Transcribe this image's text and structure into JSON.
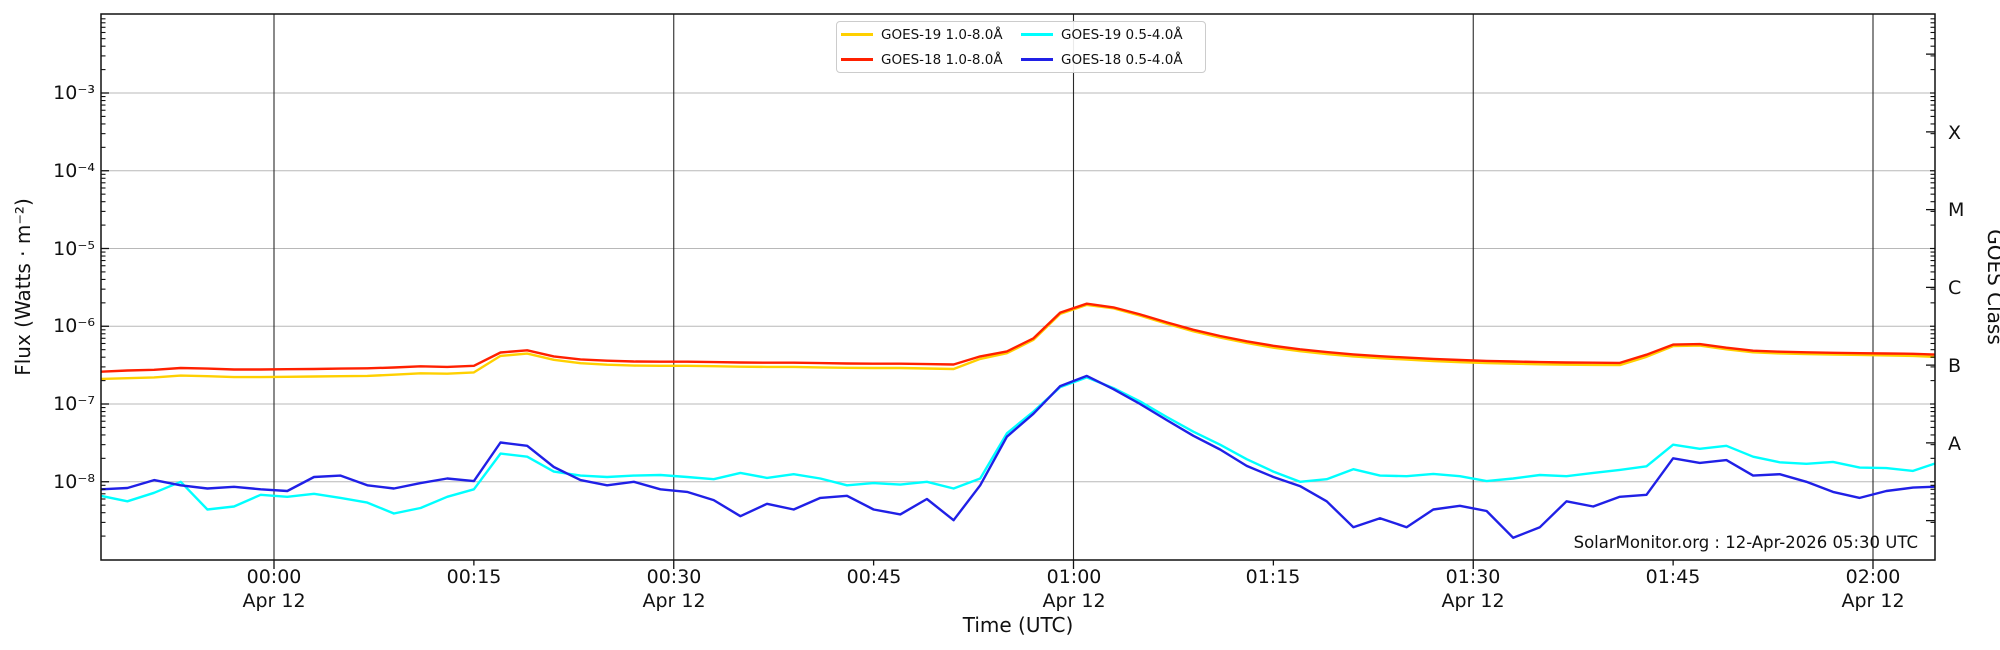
{
  "figure": {
    "watermark": "SolarMonitor.org : 12-Apr-2026 05:30 UTC",
    "background": "#ffffff"
  },
  "axes": {
    "left": {
      "label": "Flux (Watts · m⁻²)",
      "tick_labels": [
        "10⁻³",
        "10⁻⁴",
        "10⁻⁵",
        "10⁻⁶",
        "10⁻⁷",
        "10⁻⁸"
      ],
      "tick_exponents": [
        -3,
        -4,
        -5,
        -6,
        -7,
        -8
      ]
    },
    "right": {
      "label": "GOES Class",
      "classes": [
        "X",
        "M",
        "C",
        "B",
        "A"
      ],
      "class_exponent_centers": [
        -3.5,
        -4.5,
        -5.5,
        -6.5,
        -7.5
      ]
    },
    "bottom": {
      "label": "Time (UTC)",
      "tick_labels": [
        "00:00",
        "00:15",
        "00:30",
        "00:45",
        "01:00",
        "01:15",
        "01:30",
        "01:45",
        "02:00"
      ],
      "tick_minutes": [
        0,
        15,
        30,
        45,
        60,
        75,
        90,
        105,
        120
      ],
      "date_label": "Apr 12",
      "date_tick_minutes": [
        0,
        30,
        60,
        90,
        120
      ]
    }
  },
  "legend": {
    "entries": [
      {
        "label": "GOES-19 1.0-8.0Å",
        "color": "#ffd000"
      },
      {
        "label": "GOES-18 1.0-8.0Å",
        "color": "#ff2000"
      },
      {
        "label": "GOES-19 0.5-4.0Å",
        "color": "#00ffff"
      },
      {
        "label": "GOES-18 0.5-4.0Å",
        "color": "#2020e6"
      }
    ]
  },
  "chart_data": {
    "type": "line",
    "title": "",
    "xlabel": "Time (UTC)",
    "ylabel": "Flux (Watts · m⁻²)",
    "x_units": "minutes from 2026-04-12 00:00 UTC",
    "ylim": [
      1e-09,
      0.01
    ],
    "x_range_minutes": [
      -13,
      125
    ],
    "y_gridline_exponents": [
      -3,
      -4,
      -5,
      -6,
      -7,
      -8
    ],
    "x_gridline_minutes": [
      0,
      30,
      60,
      90,
      120
    ],
    "grid": true,
    "legend_position": "top-center",
    "x_minutes": [
      -13,
      -11,
      -9,
      -7,
      -5,
      -3,
      -1,
      1,
      3,
      5,
      7,
      9,
      11,
      13,
      15,
      17,
      19,
      21,
      23,
      25,
      27,
      29,
      31,
      33,
      35,
      37,
      39,
      41,
      43,
      45,
      47,
      49,
      51,
      53,
      55,
      57,
      59,
      61,
      63,
      65,
      67,
      69,
      71,
      73,
      75,
      77,
      79,
      81,
      83,
      85,
      87,
      89,
      91,
      93,
      95,
      97,
      99,
      101,
      103,
      105,
      107,
      109,
      111,
      113,
      115,
      117,
      119,
      121,
      123,
      125
    ],
    "series": [
      {
        "name": "GOES-19 1.0-8.0Å",
        "slug": "goes19-long",
        "color": "#ffd000",
        "values": [
          2.1e-07,
          2.15e-07,
          2.2e-07,
          2.32e-07,
          2.28e-07,
          2.22e-07,
          2.22e-07,
          2.24e-07,
          2.26e-07,
          2.28e-07,
          2.3e-07,
          2.38e-07,
          2.48e-07,
          2.45e-07,
          2.55e-07,
          4.15e-07,
          4.45e-07,
          3.7e-07,
          3.35e-07,
          3.2e-07,
          3.12e-07,
          3.1e-07,
          3.1e-07,
          3.06e-07,
          3.02e-07,
          3e-07,
          3e-07,
          2.96e-07,
          2.92e-07,
          2.9e-07,
          2.9e-07,
          2.86e-07,
          2.82e-07,
          3.8e-07,
          4.5e-07,
          6.7e-07,
          1.44e-06,
          1.88e-06,
          1.7e-06,
          1.37e-06,
          1.08e-06,
          8.6e-07,
          7.15e-07,
          6.1e-07,
          5.3e-07,
          4.78e-07,
          4.4e-07,
          4.1e-07,
          3.88e-07,
          3.72e-07,
          3.57e-07,
          3.45e-07,
          3.36e-07,
          3.3e-07,
          3.24e-07,
          3.2e-07,
          3.18e-07,
          3.16e-07,
          4.05e-07,
          5.55e-07,
          5.65e-07,
          5.05e-07,
          4.62e-07,
          4.48e-07,
          4.4e-07,
          4.33e-07,
          4.28e-07,
          4.22e-07,
          4.15e-07,
          4e-07
        ]
      },
      {
        "name": "GOES-18 1.0-8.0Å",
        "slug": "goes18-long",
        "color": "#ff2000",
        "values": [
          2.6e-07,
          2.7e-07,
          2.75e-07,
          2.9e-07,
          2.85e-07,
          2.78e-07,
          2.78e-07,
          2.8e-07,
          2.82e-07,
          2.85e-07,
          2.88e-07,
          2.95e-07,
          3.05e-07,
          3e-07,
          3.1e-07,
          4.6e-07,
          4.9e-07,
          4.1e-07,
          3.75e-07,
          3.6e-07,
          3.52e-07,
          3.5e-07,
          3.5e-07,
          3.46e-07,
          3.42e-07,
          3.4e-07,
          3.4e-07,
          3.36e-07,
          3.32e-07,
          3.3e-07,
          3.3e-07,
          3.26e-07,
          3.22e-07,
          4.1e-07,
          4.75e-07,
          7e-07,
          1.5e-06,
          1.95e-06,
          1.75e-06,
          1.42e-06,
          1.12e-06,
          9e-07,
          7.5e-07,
          6.4e-07,
          5.6e-07,
          5.05e-07,
          4.65e-07,
          4.35e-07,
          4.12e-07,
          3.95e-07,
          3.8e-07,
          3.68e-07,
          3.58e-07,
          3.52e-07,
          3.46e-07,
          3.42e-07,
          3.4e-07,
          3.38e-07,
          4.3e-07,
          5.8e-07,
          5.9e-07,
          5.3e-07,
          4.85e-07,
          4.7e-07,
          4.62e-07,
          4.55e-07,
          4.5e-07,
          4.46e-07,
          4.42e-07,
          4.3e-07
        ]
      },
      {
        "name": "GOES-19 0.5-4.0Å",
        "slug": "goes19-short",
        "color": "#00ffff",
        "values": [
          6.6e-09,
          5.6e-09,
          7.2e-09,
          1e-08,
          4.4e-09,
          4.8e-09,
          6.8e-09,
          6.4e-09,
          7e-09,
          6.2e-09,
          5.4e-09,
          3.9e-09,
          4.6e-09,
          6.4e-09,
          8e-09,
          2.3e-08,
          2.1e-08,
          1.35e-08,
          1.2e-08,
          1.15e-08,
          1.2e-08,
          1.22e-08,
          1.15e-08,
          1.08e-08,
          1.3e-08,
          1.12e-08,
          1.25e-08,
          1.1e-08,
          9e-09,
          9.6e-09,
          9.2e-09,
          1e-08,
          8.2e-09,
          1.1e-08,
          4.2e-08,
          8e-08,
          1.65e-07,
          2.2e-07,
          1.6e-07,
          1.08e-07,
          6.8e-08,
          4.4e-08,
          3e-08,
          1.95e-08,
          1.35e-08,
          1e-08,
          1.08e-08,
          1.45e-08,
          1.2e-08,
          1.18e-08,
          1.26e-08,
          1.18e-08,
          1.02e-08,
          1.1e-08,
          1.22e-08,
          1.18e-08,
          1.3e-08,
          1.42e-08,
          1.58e-08,
          3e-08,
          2.65e-08,
          2.9e-08,
          2.1e-08,
          1.78e-08,
          1.7e-08,
          1.8e-08,
          1.52e-08,
          1.5e-08,
          1.38e-08,
          1.8e-08
        ]
      },
      {
        "name": "GOES-18 0.5-4.0Å",
        "slug": "goes18-short",
        "color": "#2020e6",
        "values": [
          8e-09,
          8.3e-09,
          1.05e-08,
          9e-09,
          8.2e-09,
          8.6e-09,
          8e-09,
          7.6e-09,
          1.15e-08,
          1.2e-08,
          9e-09,
          8.2e-09,
          9.6e-09,
          1.1e-08,
          1.02e-08,
          3.2e-08,
          2.9e-08,
          1.55e-08,
          1.05e-08,
          9e-09,
          1e-08,
          8e-09,
          7.4e-09,
          5.8e-09,
          3.6e-09,
          5.2e-09,
          4.4e-09,
          6.2e-09,
          6.6e-09,
          4.4e-09,
          3.8e-09,
          6e-09,
          3.2e-09,
          9e-09,
          3.8e-08,
          7.5e-08,
          1.7e-07,
          2.3e-07,
          1.55e-07,
          1e-07,
          6.2e-08,
          3.9e-08,
          2.6e-08,
          1.6e-08,
          1.15e-08,
          8.8e-09,
          5.6e-09,
          2.6e-09,
          3.4e-09,
          2.6e-09,
          4.4e-09,
          4.9e-09,
          4.2e-09,
          1.9e-09,
          2.6e-09,
          5.6e-09,
          4.8e-09,
          6.4e-09,
          6.8e-09,
          2e-08,
          1.75e-08,
          1.9e-08,
          1.2e-08,
          1.25e-08,
          1e-08,
          7.4e-09,
          6.2e-09,
          7.6e-09,
          8.4e-09,
          8.7e-09
        ]
      }
    ]
  }
}
